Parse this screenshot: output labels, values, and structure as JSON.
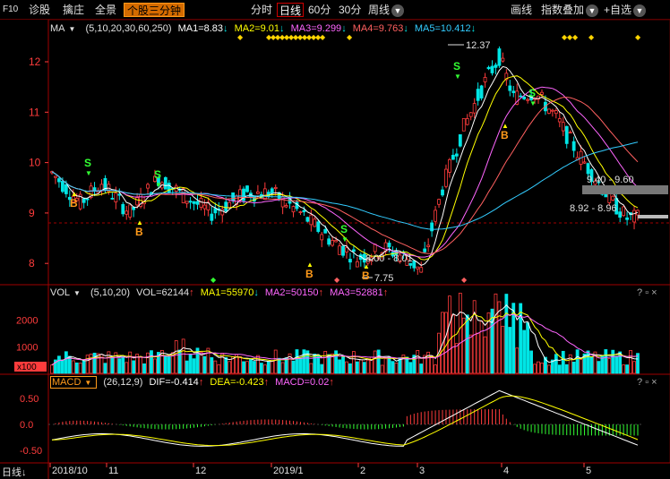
{
  "toolbar": {
    "f10": "F10",
    "diagnose": "诊股",
    "picker": "擒庄",
    "fullscreen": "全景",
    "active_tab": "个股三分钟",
    "periods": [
      "分时",
      "日线",
      "60分",
      "30分",
      "周线"
    ],
    "selected_period": "日线",
    "draw_line": "画线",
    "index_overlay": "指数叠加",
    "add_custom": "+自选"
  },
  "ma_legend": {
    "name": "MA",
    "params": "(5,10,20,30,60,250)",
    "ma1": "MA1=8.83",
    "ma2": "MA2=9.01",
    "ma3": "MA3=9.299",
    "ma4": "MA4=9.763",
    "ma5": "MA5=10.412"
  },
  "price_axis": [
    "12",
    "11",
    "10",
    "9",
    "8"
  ],
  "annotations": {
    "high": "12.37",
    "low": "7.75",
    "range_top": "9.40 - 9.60",
    "range_mid": "8.92 - 8.96",
    "range_low": "8.00 - 8.01",
    "buy": "B",
    "sell": "S"
  },
  "vol_legend": {
    "name": "VOL",
    "params": "(5,10,20)",
    "vol": "VOL=62144",
    "ma1": "MA1=55970",
    "ma2": "MA2=50150",
    "ma3": "MA3=52881"
  },
  "vol_axis": [
    "2000",
    "1000",
    "x100"
  ],
  "macd_legend": {
    "name": "MACD",
    "params": "(26,12,9)",
    "dif": "DIF=-0.414",
    "dea": "DEA=-0.423",
    "macd": "MACD=0.02"
  },
  "macd_axis": [
    "0.50",
    "0.0",
    "-0.50"
  ],
  "time_axis": [
    "2018/10",
    "11",
    "12",
    "2019/1",
    "2",
    "3",
    "4",
    "5"
  ],
  "bottom_left": "日线",
  "colors": {
    "up": "#ff3c3c",
    "down": "#00e5e5",
    "ma1": "#ffffff",
    "ma2": "#ffff00",
    "ma3": "#ff66ff",
    "ma4": "#ff6060",
    "ma5": "#33ccff",
    "grid": "#5a0000"
  }
}
